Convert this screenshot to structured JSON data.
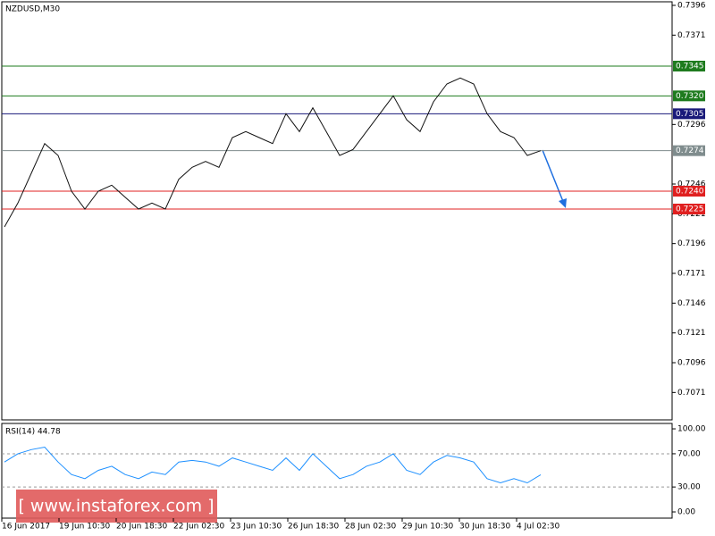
{
  "chart_data": [
    {
      "type": "line",
      "title": "NZDUSD,M30",
      "color": "#111111",
      "values": [
        0.721,
        0.723,
        0.7255,
        0.728,
        0.727,
        0.724,
        0.7225,
        0.724,
        0.7245,
        0.7235,
        0.7225,
        0.723,
        0.7225,
        0.725,
        0.726,
        0.7265,
        0.726,
        0.7285,
        0.729,
        0.7285,
        0.728,
        0.7305,
        0.729,
        0.731,
        0.729,
        0.727,
        0.7275,
        0.729,
        0.7305,
        0.732,
        0.73,
        0.729,
        0.7315,
        0.733,
        0.7335,
        0.733,
        0.7305,
        0.729,
        0.7285,
        0.727,
        0.7274
      ],
      "ylim": [
        0.7048,
        0.7399
      ],
      "yticks": [
        0.7396,
        0.7371,
        0.7296,
        0.7246,
        0.7221,
        0.7196,
        0.7171,
        0.7146,
        0.7121,
        0.7096,
        0.7071
      ],
      "levels": [
        {
          "value": 0.7345,
          "label": "0.7345",
          "color": "#1e7b1e"
        },
        {
          "value": 0.732,
          "label": "0.7320",
          "color": "#1e7b1e"
        },
        {
          "value": 0.7305,
          "label": "0.7305",
          "color": "#1a1a7a"
        },
        {
          "value": 0.7274,
          "label": "0.7274",
          "color": "#7f8c8d"
        },
        {
          "value": 0.724,
          "label": "0.7240",
          "color": "#e02020"
        },
        {
          "value": 0.7225,
          "label": "0.7225",
          "color": "#e02020"
        }
      ]
    },
    {
      "type": "line",
      "title": "RSI(14) 44.78",
      "color": "#1e90ff",
      "values": [
        60,
        70,
        75,
        78,
        60,
        45,
        40,
        50,
        55,
        45,
        40,
        48,
        45,
        60,
        62,
        60,
        55,
        65,
        60,
        55,
        50,
        65,
        50,
        70,
        55,
        40,
        45,
        55,
        60,
        70,
        50,
        45,
        60,
        68,
        65,
        60,
        40,
        35,
        40,
        35,
        44.78
      ],
      "ylim": [
        -7.5,
        106.5
      ],
      "yticks": [
        {
          "value": 100,
          "label": "100.00"
        },
        {
          "value": 70,
          "label": "70.00"
        },
        {
          "value": 30,
          "label": "30.00"
        },
        {
          "value": 0,
          "label": "0.00"
        }
      ],
      "dashed": [
        70,
        30
      ],
      "time_labels": [
        "16 Jun 2017",
        "19 Jun 10:30",
        "20 Jun 18:30",
        "22 Jun 02:30",
        "23 Jun 10:30",
        "26 Jun 18:30",
        "28 Jun 02:30",
        "29 Jun 10:30",
        "30 Jun 18:30",
        "4 Jul 02:30"
      ]
    }
  ],
  "watermark": "[ www.instaforex.com ]"
}
